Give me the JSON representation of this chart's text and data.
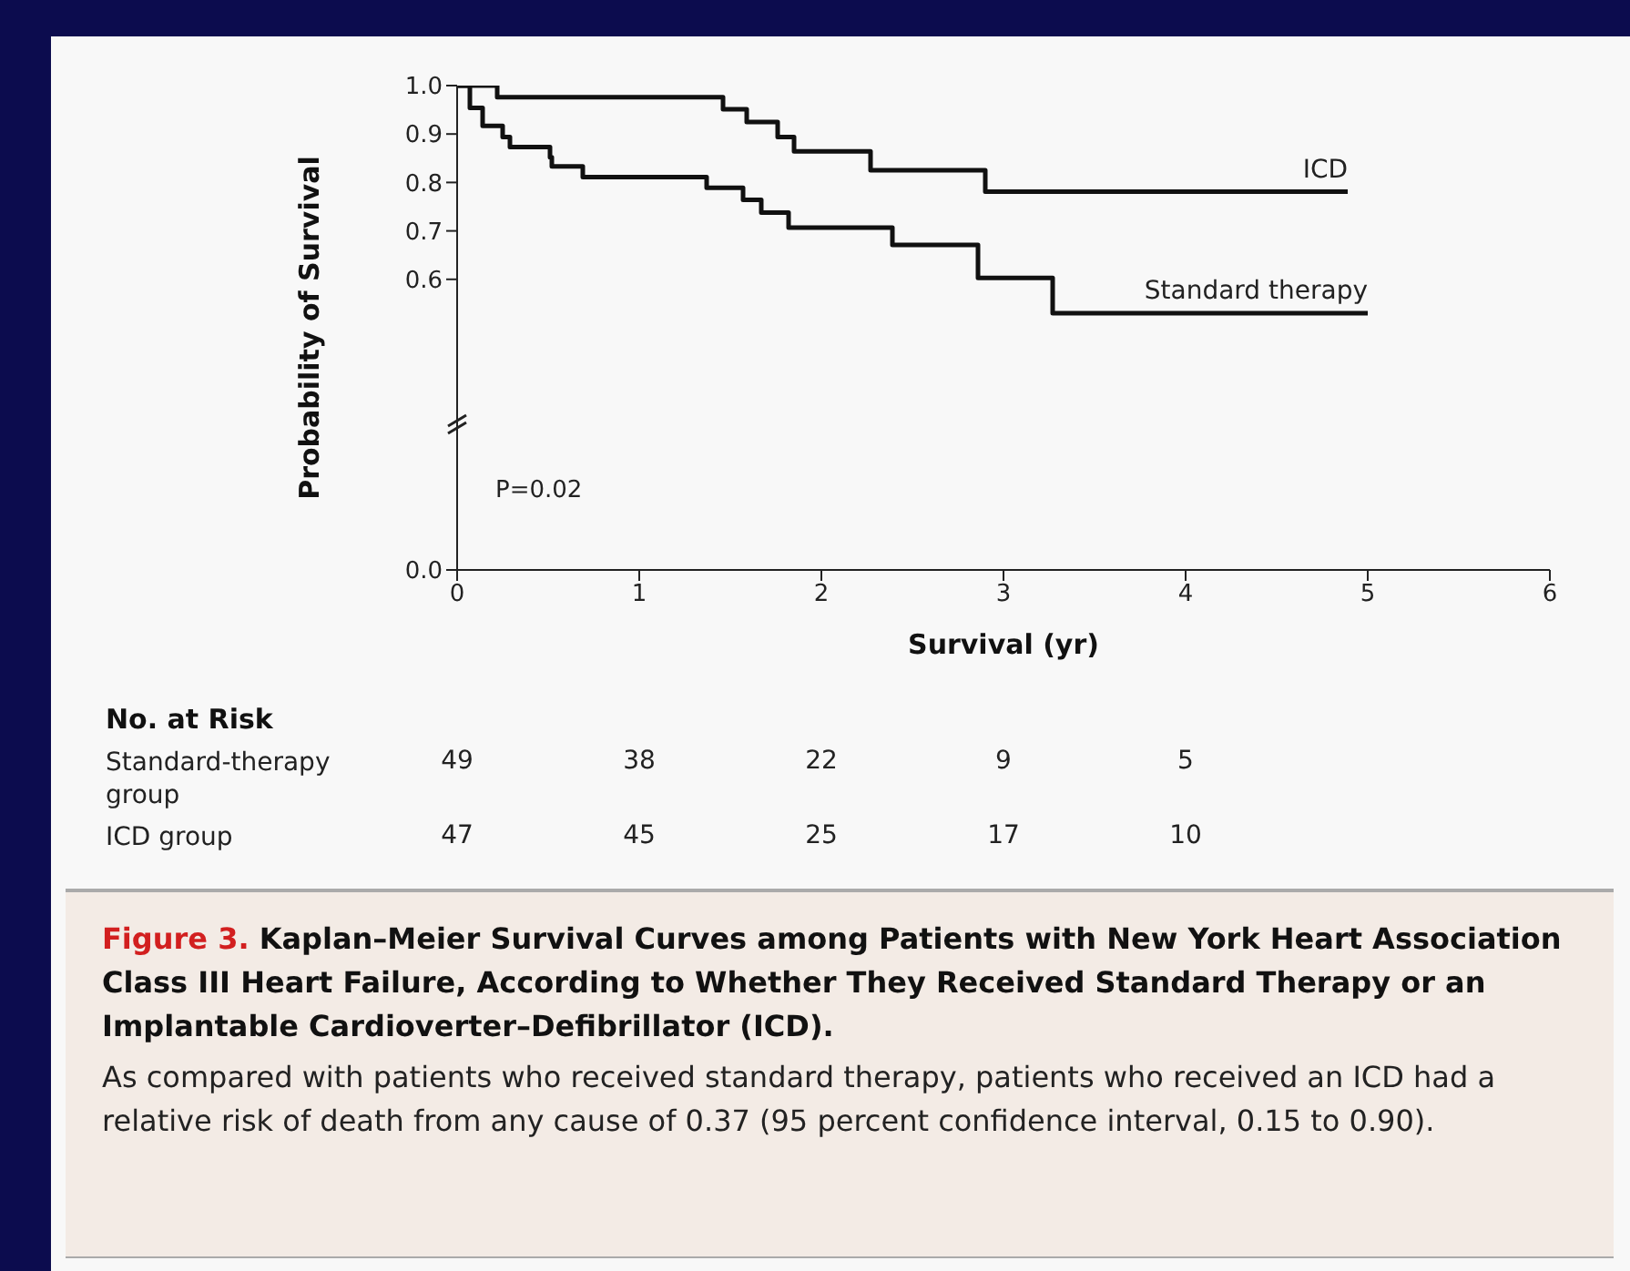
{
  "chart_data": {
    "type": "step",
    "title": "Figure 3. Kaplan–Meier Survival Curves among Patients with New York Heart Association Class III Heart Failure, According to Whether They Received Standard Therapy or an Implantable Cardioverter–Defibrillator (ICD).",
    "subtitle": "As compared with patients who received standard therapy, patients who received an ICD had a relative risk of death from any cause of 0.37 (95 percent confidence interval, 0.15 to 0.90).",
    "xlabel": "Survival (yr)",
    "ylabel": "Probability of Survival",
    "xlim": [
      0,
      6
    ],
    "xticks": [
      0,
      1,
      2,
      3,
      4,
      5,
      6
    ],
    "ylim": [
      0,
      1
    ],
    "yticks": [
      {
        "value": 0,
        "label": "0.0"
      },
      0.6,
      0.7,
      0.8,
      0.9,
      {
        "value": 1,
        "label": "1.0"
      }
    ],
    "marker": "none",
    "line_style": "solid",
    "series": [
      {
        "name": "ICD",
        "color": "#111111",
        "x": [
          0,
          0.22,
          1.46,
          1.59,
          1.76,
          1.85,
          2.27,
          2.9,
          4.89
        ],
        "values": [
          1.0,
          0.976,
          0.951,
          0.925,
          0.894,
          0.864,
          0.825,
          0.781,
          0.781
        ]
      },
      {
        "name": "Standard therapy",
        "color": "#111111",
        "x": [
          0,
          0.07,
          0.14,
          0.25,
          0.29,
          0.51,
          0.52,
          0.69,
          1.37,
          1.57,
          1.67,
          1.82,
          2.39,
          2.86,
          3.27,
          5.0
        ],
        "values": [
          1.0,
          0.954,
          0.917,
          0.894,
          0.873,
          0.852,
          0.833,
          0.811,
          0.789,
          0.764,
          0.738,
          0.707,
          0.671,
          0.603,
          0.53,
          0.53
        ]
      }
    ],
    "annotations": [
      "P=0.02",
      "No. at Risk",
      "Standard-therapy group",
      "49",
      "38",
      "22",
      "9",
      "5",
      "ICD group",
      "47",
      "45",
      "25",
      "17",
      "10"
    ]
  }
}
